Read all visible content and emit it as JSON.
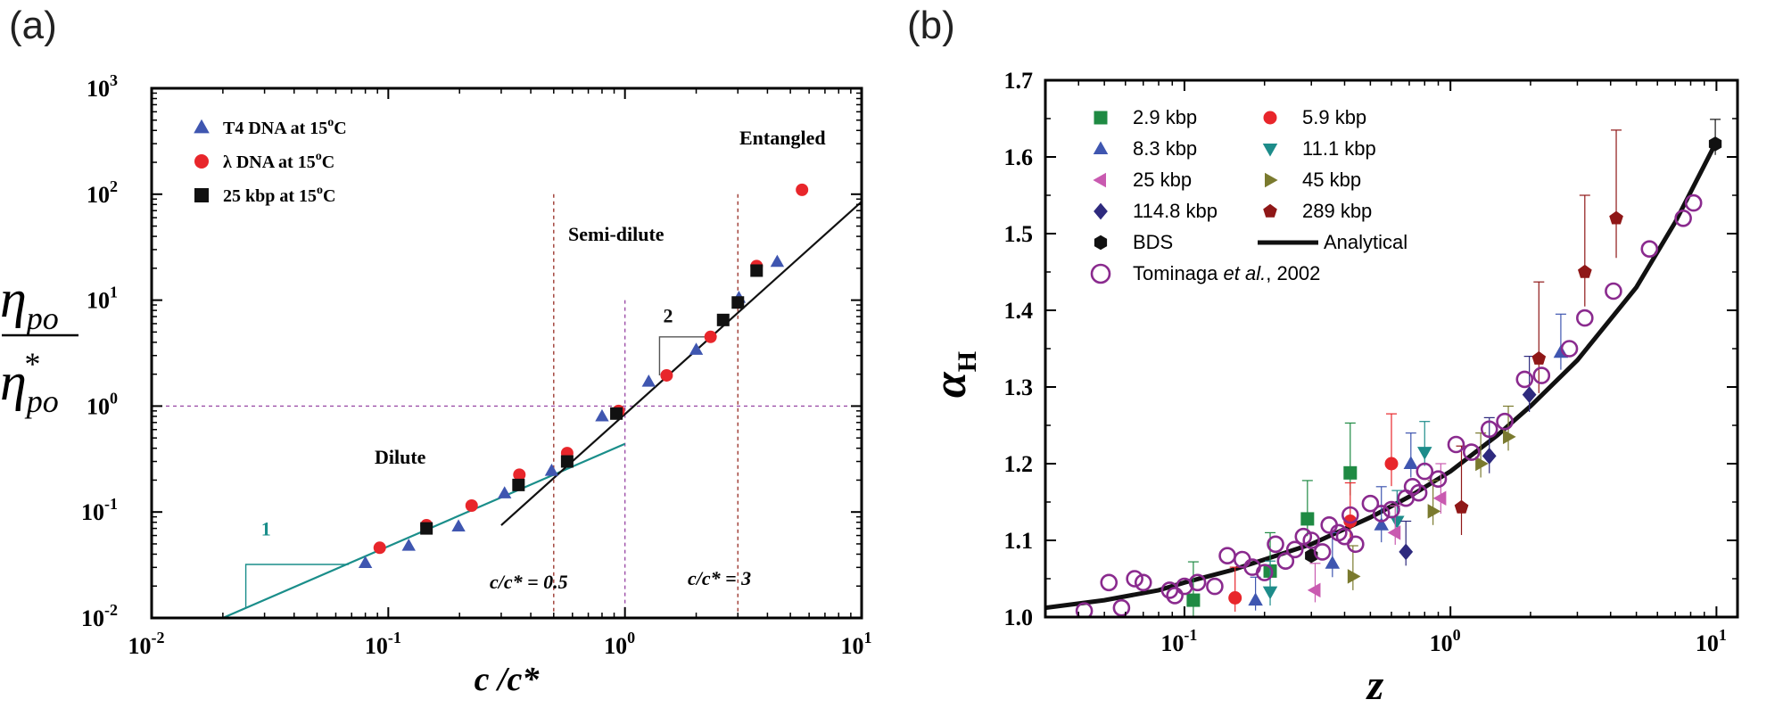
{
  "panels": {
    "a": "(a)",
    "b": "(b)"
  },
  "colors": {
    "t4": "#3f56b0",
    "lambda": "#e8262b",
    "kbp25": "#111111",
    "teal": "#1a8e8a",
    "dashPurple": "#9d4fa8",
    "dashRed": "#9e3b33"
  },
  "chart_data": [
    {
      "type": "scatter",
      "panel": "(a)",
      "xscale": "log",
      "yscale": "log",
      "xlim": [
        0.01,
        10
      ],
      "ylim": [
        0.01,
        1000
      ],
      "xlabel": "c /c*",
      "ylabel": "η_po / η*_po",
      "xticks": [
        {
          "e": "-2"
        },
        {
          "e": "-1"
        },
        {
          "e": "0"
        },
        {
          "e": "1"
        }
      ],
      "yticks": [
        {
          "e": "-2"
        },
        {
          "e": "-1"
        },
        {
          "e": "0"
        },
        {
          "e": "1"
        },
        {
          "e": "2"
        },
        {
          "e": "3"
        }
      ],
      "series": [
        {
          "name": "T4 DNA at 15",
          "sup": "o",
          "unit": "C",
          "marker": "triangle",
          "color": "#3f56b0",
          "x": [
            0.08,
            0.122,
            0.198,
            0.31,
            0.49,
            0.8,
            1.26,
            2.0,
            3.03,
            4.4
          ],
          "y": [
            0.033,
            0.048,
            0.073,
            0.15,
            0.245,
            0.8,
            1.7,
            3.4,
            10.5,
            23
          ]
        },
        {
          "name": "λ DNA at 15",
          "sup": "o",
          "unit": "C",
          "marker": "circle",
          "color": "#e8262b",
          "x": [
            0.092,
            0.145,
            0.225,
            0.358,
            0.57,
            0.94,
            1.5,
            2.3,
            3.6,
            5.6
          ],
          "y": [
            0.046,
            0.075,
            0.115,
            0.225,
            0.36,
            0.9,
            1.95,
            4.5,
            21,
            110
          ]
        },
        {
          "name": "25 kbp at 15",
          "sup": "o",
          "unit": "C",
          "marker": "square",
          "color": "#111111",
          "x": [
            0.145,
            0.355,
            0.57,
            0.92,
            2.6,
            3.0,
            3.6
          ],
          "y": [
            0.07,
            0.18,
            0.3,
            0.85,
            6.5,
            9.5,
            19
          ]
        }
      ],
      "fits": [
        {
          "name": "slope 1",
          "color": "#1a8e8a",
          "x": [
            0.02,
            1.0
          ],
          "y": [
            0.01,
            0.44
          ]
        },
        {
          "name": "slope 2",
          "color": "#111111",
          "x": [
            0.3,
            10
          ],
          "y": [
            0.075,
            85
          ]
        }
      ],
      "slope_labels": {
        "one": "1",
        "two": "2"
      },
      "regions": {
        "dilute": "Dilute",
        "semidilute": "Semi-dilute",
        "entangled": "Entangled"
      },
      "annotations": {
        "c05": "c/c* = 0.5",
        "c3": "c/c* = 3"
      },
      "vlines": [
        0.5,
        1.0,
        3.0
      ],
      "hline": 1.0
    },
    {
      "type": "scatter",
      "panel": "(b)",
      "xscale": "log",
      "yscale": "linear",
      "xlim": [
        0.03,
        12
      ],
      "ylim": [
        1.0,
        1.7
      ],
      "xlabel": "z",
      "ylabel": "α_H",
      "xticks": [
        {
          "e": "-1"
        },
        {
          "e": "0"
        },
        {
          "e": "1"
        }
      ],
      "yticks": [
        "1.0",
        "1.1",
        "1.2",
        "1.3",
        "1.4",
        "1.5",
        "1.6",
        "1.7"
      ],
      "series": [
        {
          "name": "2.9 kbp",
          "marker": "square",
          "color": "#1f8a43",
          "x": [
            0.108,
            0.21,
            0.29,
            0.42
          ],
          "y": [
            1.022,
            1.06,
            1.128,
            1.188
          ],
          "err": [
            0.05,
            0.05,
            0.05,
            0.065
          ]
        },
        {
          "name": "5.9 kbp",
          "marker": "circle",
          "color": "#e8262b",
          "x": [
            0.155,
            0.42,
            0.6
          ],
          "y": [
            1.025,
            1.125,
            1.2
          ],
          "err": [
            0.04,
            0.05,
            0.065
          ]
        },
        {
          "name": "8.3 kbp",
          "marker": "triangle",
          "color": "#3f56b0",
          "x": [
            0.185,
            0.36,
            0.55,
            0.71,
            2.6
          ],
          "y": [
            1.022,
            1.07,
            1.12,
            1.2,
            1.345
          ],
          "err": [
            0.03,
            0.04,
            0.05,
            0.04,
            0.05
          ]
        },
        {
          "name": "11.1 kbp",
          "marker": "triangle-down",
          "color": "#1d8c8a",
          "x": [
            0.21,
            0.63,
            0.8
          ],
          "y": [
            1.033,
            1.125,
            1.215
          ],
          "err": [
            0.04,
            0.04,
            0.04
          ]
        },
        {
          "name": "25 kbp",
          "marker": "triangle-left",
          "color": "#c95ab0",
          "x": [
            0.31,
            0.62,
            0.92
          ],
          "y": [
            1.035,
            1.11,
            1.155
          ],
          "err": [
            0.035,
            0.035,
            0.045
          ]
        },
        {
          "name": "45 kbp",
          "marker": "triangle-right",
          "color": "#7a7a2e",
          "x": [
            0.43,
            0.86,
            1.3,
            1.65
          ],
          "y": [
            1.053,
            1.138,
            1.2,
            1.235
          ],
          "err": [
            0.04,
            0.04,
            0.04,
            0.04
          ]
        },
        {
          "name": "114.8 kbp",
          "marker": "diamond",
          "color": "#2e2a7e",
          "x": [
            0.68,
            1.4,
            1.98
          ],
          "y": [
            1.085,
            1.21,
            1.29
          ],
          "err": [
            0.04,
            0.05,
            0.05
          ]
        },
        {
          "name": "289 kbp",
          "marker": "pentagon",
          "color": "#8f1717",
          "x": [
            1.1,
            2.15,
            3.2,
            4.2
          ],
          "y": [
            1.143,
            1.337,
            1.45,
            1.52
          ],
          "err": [
            0.08,
            0.1,
            0.1,
            0.115
          ]
        },
        {
          "name": "BDS",
          "marker": "hexagon",
          "color": "#111111",
          "x": [
            0.3,
            9.9
          ],
          "y": [
            1.08,
            1.617
          ],
          "err": [
            0.0,
            0.032
          ]
        },
        {
          "name": "Tominaga et al., 2002",
          "marker": "open-circle",
          "color": "#8a2a8e",
          "x": [
            0.042,
            0.052,
            0.058,
            0.065,
            0.07,
            0.088,
            0.092,
            0.1,
            0.112,
            0.13,
            0.145,
            0.165,
            0.18,
            0.2,
            0.22,
            0.24,
            0.26,
            0.28,
            0.3,
            0.33,
            0.35,
            0.38,
            0.4,
            0.42,
            0.44,
            0.5,
            0.55,
            0.6,
            0.68,
            0.72,
            0.76,
            0.8,
            0.9,
            1.05,
            1.2,
            1.4,
            1.6,
            1.9,
            2.2,
            2.8,
            3.2,
            4.1,
            5.6,
            7.5,
            8.2
          ],
          "y": [
            1.008,
            1.045,
            1.012,
            1.05,
            1.045,
            1.035,
            1.028,
            1.04,
            1.045,
            1.04,
            1.08,
            1.075,
            1.065,
            1.058,
            1.095,
            1.073,
            1.088,
            1.105,
            1.1,
            1.085,
            1.12,
            1.11,
            1.105,
            1.133,
            1.095,
            1.148,
            1.135,
            1.14,
            1.155,
            1.17,
            1.162,
            1.19,
            1.18,
            1.225,
            1.215,
            1.245,
            1.255,
            1.31,
            1.315,
            1.35,
            1.39,
            1.425,
            1.48,
            1.52,
            1.54
          ]
        }
      ],
      "curve": {
        "name": "Analytical",
        "color": "#111111",
        "x": [
          0.03,
          0.05,
          0.08,
          0.1,
          0.15,
          0.2,
          0.3,
          0.5,
          0.7,
          1.0,
          1.5,
          2.0,
          3.0,
          5.0,
          7.0,
          10.0
        ],
        "y": [
          1.012,
          1.022,
          1.035,
          1.045,
          1.061,
          1.075,
          1.095,
          1.13,
          1.157,
          1.19,
          1.237,
          1.275,
          1.335,
          1.43,
          1.515,
          1.62
        ]
      },
      "legend_title_italic": "et al."
    }
  ]
}
